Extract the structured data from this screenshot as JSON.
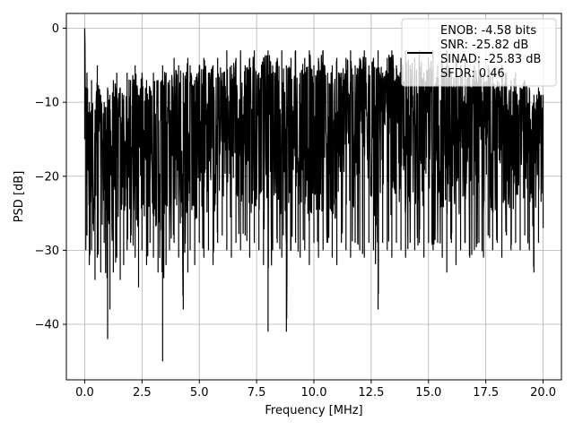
{
  "chart_data": {
    "type": "line",
    "title": "",
    "xlabel": "Frequency [MHz]",
    "ylabel": "PSD [dB]",
    "xlim": [
      -0.8,
      20.8
    ],
    "ylim": [
      -47.5,
      2.0
    ],
    "xticks": [
      0.0,
      2.5,
      5.0,
      7.5,
      10.0,
      12.5,
      15.0,
      17.5,
      20.0
    ],
    "xtick_labels": [
      "0.0",
      "2.5",
      "5.0",
      "7.5",
      "10.0",
      "12.5",
      "15.0",
      "17.5",
      "20.0"
    ],
    "yticks": [
      0,
      -10,
      -20,
      -30,
      -40
    ],
    "ytick_labels": [
      "0",
      "−10",
      "−20",
      "−30",
      "−40"
    ],
    "grid": true,
    "legend_position": "top-right",
    "legend_lines": [
      "ENOB: -4.58 bits",
      "SNR: -25.82 dB",
      "SINAD: -25.83 dB",
      "SFDR: 0.46"
    ],
    "series": [
      {
        "color": "#000000",
        "x": [
          0.0,
          0.05,
          0.1,
          0.2,
          0.3,
          0.45,
          0.55,
          0.7,
          0.85,
          1.0,
          1.1,
          1.25,
          1.4,
          1.55,
          1.7,
          1.85,
          2.0,
          2.2,
          2.35,
          2.5,
          2.7,
          2.85,
          3.0,
          3.2,
          3.4,
          3.55,
          3.7,
          3.9,
          4.1,
          4.3,
          4.5,
          4.6,
          4.8,
          5.0,
          5.2,
          5.4,
          5.6,
          5.8,
          6.0,
          6.2,
          6.4,
          6.6,
          6.8,
          7.0,
          7.2,
          7.4,
          7.6,
          7.8,
          8.0,
          8.2,
          8.4,
          8.6,
          8.8,
          9.0,
          9.2,
          9.4,
          9.6,
          9.8,
          10.0,
          10.2,
          10.4,
          10.6,
          10.8,
          11.0,
          11.2,
          11.4,
          11.6,
          11.8,
          12.0,
          12.2,
          12.4,
          12.6,
          12.8,
          13.0,
          13.2,
          13.4,
          13.6,
          13.8,
          14.0,
          14.2,
          14.4,
          14.6,
          14.8,
          15.0,
          15.2,
          15.4,
          15.6,
          15.8,
          16.0,
          16.2,
          16.4,
          16.6,
          16.8,
          17.0,
          17.2,
          17.4,
          17.6,
          17.8,
          18.0,
          18.2,
          18.4,
          18.6,
          18.8,
          19.0,
          19.2,
          19.4,
          19.6,
          19.8,
          20.0
        ],
        "y_max": [
          0.0,
          -8,
          -6,
          -10,
          -7,
          -11,
          -5,
          -9,
          -10,
          -8,
          -9,
          -7,
          -6,
          -8,
          -9,
          -6,
          -7,
          -5,
          -9,
          -6,
          -7,
          -8,
          -6,
          -7,
          -5,
          -6,
          -7,
          -4,
          -5,
          -6,
          -4,
          -5,
          -7,
          -5,
          -4,
          -6,
          -5,
          -4,
          -6,
          -3,
          -5,
          -4,
          -3,
          -5,
          -4,
          -3,
          -6,
          -4,
          -3,
          -5,
          -4,
          -3,
          -5,
          -4,
          -3,
          -6,
          -4,
          -3,
          -5,
          -4,
          -3,
          -6,
          -5,
          -4,
          -6,
          -4,
          -3,
          -5,
          -4,
          -3,
          -5,
          -4,
          -3,
          -6,
          -4,
          -3,
          -5,
          -4,
          -3,
          -5,
          -4,
          -3,
          -6,
          -4,
          -3,
          -5,
          -4,
          -3,
          -6,
          -4,
          -5,
          -4,
          -6,
          -5,
          -4,
          -6,
          -5,
          -6,
          -7,
          -5,
          -6,
          -7,
          -6,
          -8,
          -7,
          -8,
          -9,
          -8,
          -9
        ],
        "y_min": [
          -15,
          -30,
          -28,
          -32,
          -30,
          -34,
          -31,
          -33,
          -29,
          -42,
          -38,
          -33,
          -31,
          -34,
          -32,
          -30,
          -29,
          -31,
          -35,
          -30,
          -32,
          -29,
          -31,
          -33,
          -45,
          -32,
          -30,
          -29,
          -31,
          -38,
          -33,
          -30,
          -32,
          -29,
          -31,
          -30,
          -32,
          -29,
          -28,
          -30,
          -31,
          -29,
          -30,
          -28,
          -31,
          -29,
          -30,
          -32,
          -41,
          -30,
          -29,
          -31,
          -41,
          -30,
          -29,
          -31,
          -30,
          -32,
          -29,
          -31,
          -30,
          -29,
          -31,
          -32,
          -29,
          -30,
          -31,
          -29,
          -30,
          -31,
          -29,
          -30,
          -38,
          -29,
          -30,
          -31,
          -29,
          -30,
          -31,
          -29,
          -30,
          -29,
          -31,
          -29,
          -30,
          -29,
          -31,
          -33,
          -29,
          -32,
          -30,
          -29,
          -31,
          -30,
          -29,
          -31,
          -28,
          -30,
          -29,
          -31,
          -28,
          -30,
          -29,
          -30,
          -28,
          -30,
          -33,
          -29,
          -27
        ]
      }
    ]
  }
}
